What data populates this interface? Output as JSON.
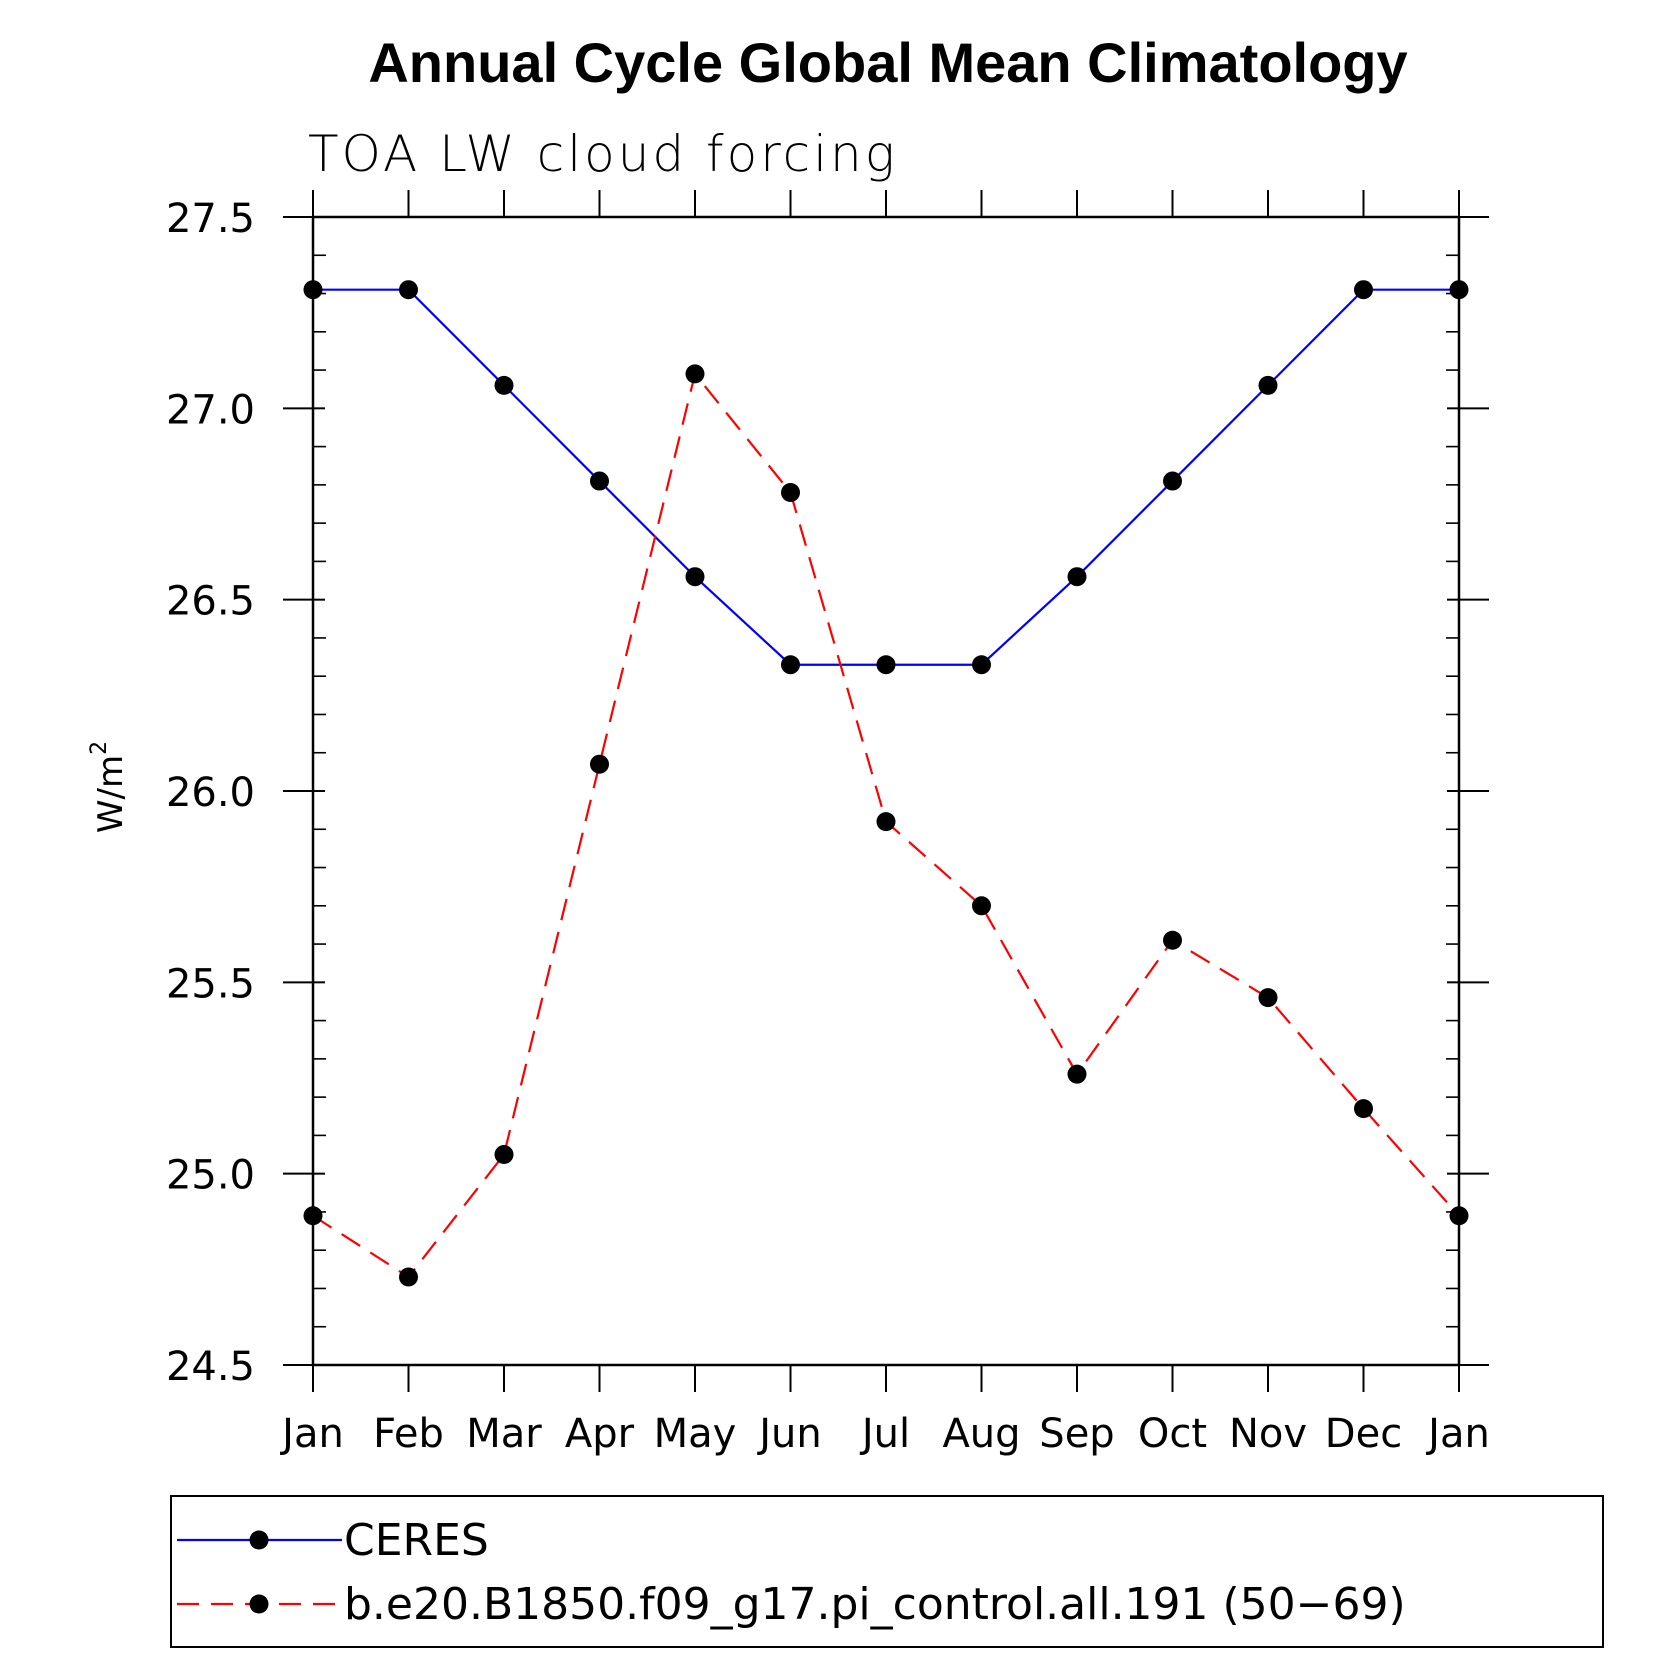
{
  "chart_data": {
    "type": "line",
    "title": "Annual Cycle Global Mean Climatology",
    "subtitle": "TOA LW cloud forcing",
    "ylabel": "W/m",
    "ylabel_superscript": "2",
    "xlabel": "",
    "categories": [
      "Jan",
      "Feb",
      "Mar",
      "Apr",
      "May",
      "Jun",
      "Jul",
      "Aug",
      "Sep",
      "Oct",
      "Nov",
      "Dec",
      "Jan"
    ],
    "y_ticks": [
      24.5,
      25.0,
      25.5,
      26.0,
      26.5,
      27.0,
      27.5
    ],
    "y_tick_labels": [
      "24.5",
      "25.0",
      "25.5",
      "26.0",
      "26.5",
      "27.0",
      "27.5"
    ],
    "ylim": [
      24.5,
      27.5
    ],
    "grid": false,
    "legend_position": "bottom",
    "series": [
      {
        "name": "CERES",
        "color": "#0000ff",
        "dash": "solid",
        "values": [
          27.31,
          27.31,
          27.06,
          26.81,
          26.56,
          26.33,
          26.33,
          26.33,
          26.56,
          26.81,
          27.06,
          27.31,
          27.31
        ]
      },
      {
        "name": "b.e20.B1850.f09_g17.pi_control.all.191 (50−69)",
        "color": "#ff0000",
        "dash": "dashed",
        "values": [
          24.89,
          24.73,
          25.05,
          26.07,
          27.09,
          26.78,
          25.92,
          25.7,
          25.26,
          25.61,
          25.46,
          25.17,
          24.89
        ]
      }
    ],
    "marker_color": "#000000"
  }
}
